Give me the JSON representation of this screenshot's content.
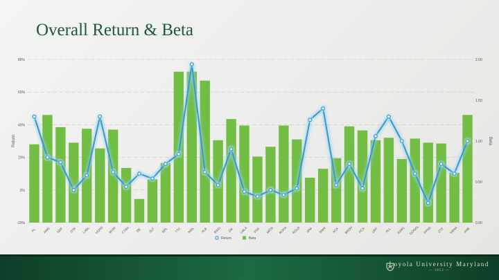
{
  "slide": {
    "title": "Overall Return & Beta",
    "brand_name": "Loyola University Maryland",
    "brand_sub": "— 1852 —"
  },
  "chart_data": {
    "type": "bar+line",
    "title": "Overall Return & Beta",
    "xlabel": "",
    "ylabel_left": "Return",
    "ylabel_right": "Beta",
    "ylim_left": [
      -20,
      80
    ],
    "ylim_right": [
      0,
      2
    ],
    "yticks_left": [
      "-20%",
      "0%",
      "20%",
      "40%",
      "60%",
      "80%"
    ],
    "yticks_right": [
      "0.00",
      "0.50",
      "1.00",
      "1.50",
      "2.00"
    ],
    "gridlines": "dashed horizontal",
    "legend_position": "bottom",
    "categories": [
      "FL",
      "AMG",
      "NDF",
      "STB",
      "LABL",
      "VGRD",
      "MYRI",
      "CYBX",
      "DE",
      "SLF",
      "BPL",
      "TTC",
      "INDL",
      "XLB",
      "BWG",
      "ZM",
      "LMLA",
      "PSA",
      "MRSI",
      "ROCK",
      "RGLD",
      "JPM",
      "SNHI",
      "ACA",
      "BRDH",
      "FCX",
      "URT",
      "ALL",
      "ASIRL",
      "GOOGL",
      "PPNS",
      "ZTS",
      "VRNA",
      "ANB"
    ],
    "series": [
      {
        "name": "Return",
        "kind": "line",
        "axis": "left",
        "color": "#3a98c9",
        "values": [
          45,
          20,
          17,
          0,
          9,
          45,
          11,
          2,
          10,
          7,
          16,
          22,
          77,
          11,
          3,
          25,
          -1,
          -4,
          0,
          -3,
          1,
          43,
          50,
          3,
          16,
          1,
          33,
          45,
          30,
          10,
          -8,
          16,
          10,
          30
        ]
      },
      {
        "name": "Beta",
        "kind": "bar",
        "axis": "right",
        "color": "#72bd44",
        "values": [
          0.96,
          1.32,
          1.17,
          0.98,
          1.15,
          0.91,
          1.14,
          0.67,
          0.29,
          0.53,
          0.73,
          1.85,
          1.85,
          1.74,
          1.01,
          1.27,
          1.19,
          0.81,
          0.93,
          1.19,
          1.02,
          0.55,
          0.66,
          0.79,
          1.18,
          1.13,
          1.01,
          1.04,
          0.78,
          1.03,
          0.98,
          0.97,
          0.61,
          1.32
        ]
      }
    ]
  }
}
